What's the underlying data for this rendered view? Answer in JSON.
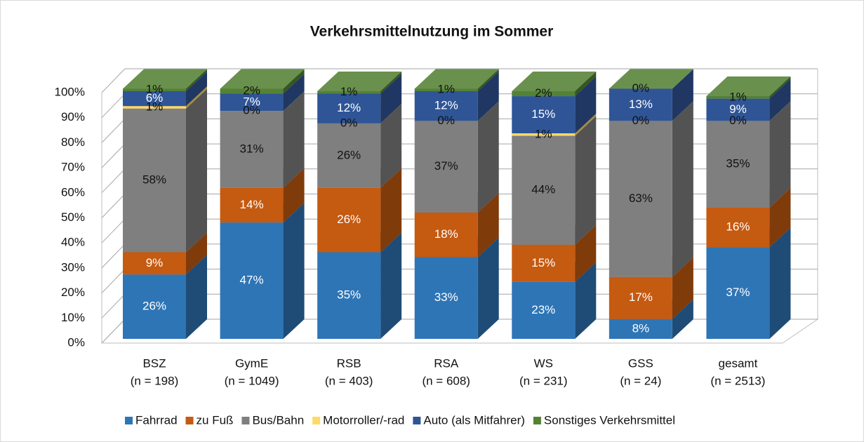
{
  "chart_data": {
    "type": "bar3d_stacked",
    "title": "Verkehrsmittelnutzung im Sommer",
    "categories": [
      [
        "BSZ",
        "(n = 198)"
      ],
      [
        "GymE",
        "(n = 1049)"
      ],
      [
        "RSB",
        "(n = 403)"
      ],
      [
        "RSA",
        "(n = 608)"
      ],
      [
        "WS",
        "(n = 231)"
      ],
      [
        "GSS",
        "(n = 24)"
      ],
      [
        "gesamt",
        "(n = 2513)"
      ]
    ],
    "series": [
      {
        "name": "Fahrrad",
        "color": "#2e75b6",
        "label_color": "#ffffff",
        "values": [
          26,
          47,
          35,
          33,
          23,
          8,
          37
        ],
        "value_labels": [
          "26%",
          "47%",
          "35%",
          "33%",
          "23%",
          "8%",
          "37%"
        ]
      },
      {
        "name": "zu Fuß",
        "color": "#c55a11",
        "label_color": "#ffffff",
        "values": [
          9,
          14,
          26,
          18,
          15,
          17,
          16
        ],
        "value_labels": [
          "9%",
          "14%",
          "26%",
          "18%",
          "15%",
          "17%",
          "16%"
        ]
      },
      {
        "name": "Bus/Bahn",
        "color": "#7f7f7f",
        "label_color": "#111111",
        "values": [
          58,
          31,
          26,
          37,
          44,
          63,
          35
        ],
        "value_labels": [
          "58%",
          "31%",
          "26%",
          "37%",
          "44%",
          "63%",
          "35%"
        ]
      },
      {
        "name": "Motorroller/-rad",
        "color": "#ffd966",
        "label_color": "#111111",
        "values": [
          1,
          0,
          0,
          0,
          1,
          0,
          0
        ],
        "value_labels": [
          "1%",
          "0%",
          "0%",
          "0%",
          "1%",
          "0%",
          "0%"
        ]
      },
      {
        "name": "Auto (als Mitfahrer)",
        "color": "#2f5597",
        "label_color": "#ffffff",
        "values": [
          6,
          7,
          12,
          12,
          15,
          13,
          9
        ],
        "value_labels": [
          "6%",
          "7%",
          "12%",
          "12%",
          "15%",
          "13%",
          "9%"
        ]
      },
      {
        "name": "Sonstiges Verkehrsmittel",
        "color": "#548235",
        "label_color": "#111111",
        "values": [
          1,
          2,
          1,
          1,
          2,
          0,
          1
        ],
        "value_labels": [
          "1%",
          "2%",
          "1%",
          "1%",
          "2%",
          "0%",
          "1%"
        ]
      }
    ],
    "ylim": [
      0,
      100
    ],
    "yticks": [
      {
        "value": 0,
        "label": "0%"
      },
      {
        "value": 10,
        "label": "10%"
      },
      {
        "value": 20,
        "label": "20%"
      },
      {
        "value": 30,
        "label": "30%"
      },
      {
        "value": 40,
        "label": "40%"
      },
      {
        "value": 50,
        "label": "50%"
      },
      {
        "value": 60,
        "label": "60%"
      },
      {
        "value": 70,
        "label": "70%"
      },
      {
        "value": 80,
        "label": "80%"
      },
      {
        "value": 90,
        "label": "90%"
      },
      {
        "value": 100,
        "label": "100%"
      }
    ],
    "grid": true,
    "legend": "bottom"
  }
}
